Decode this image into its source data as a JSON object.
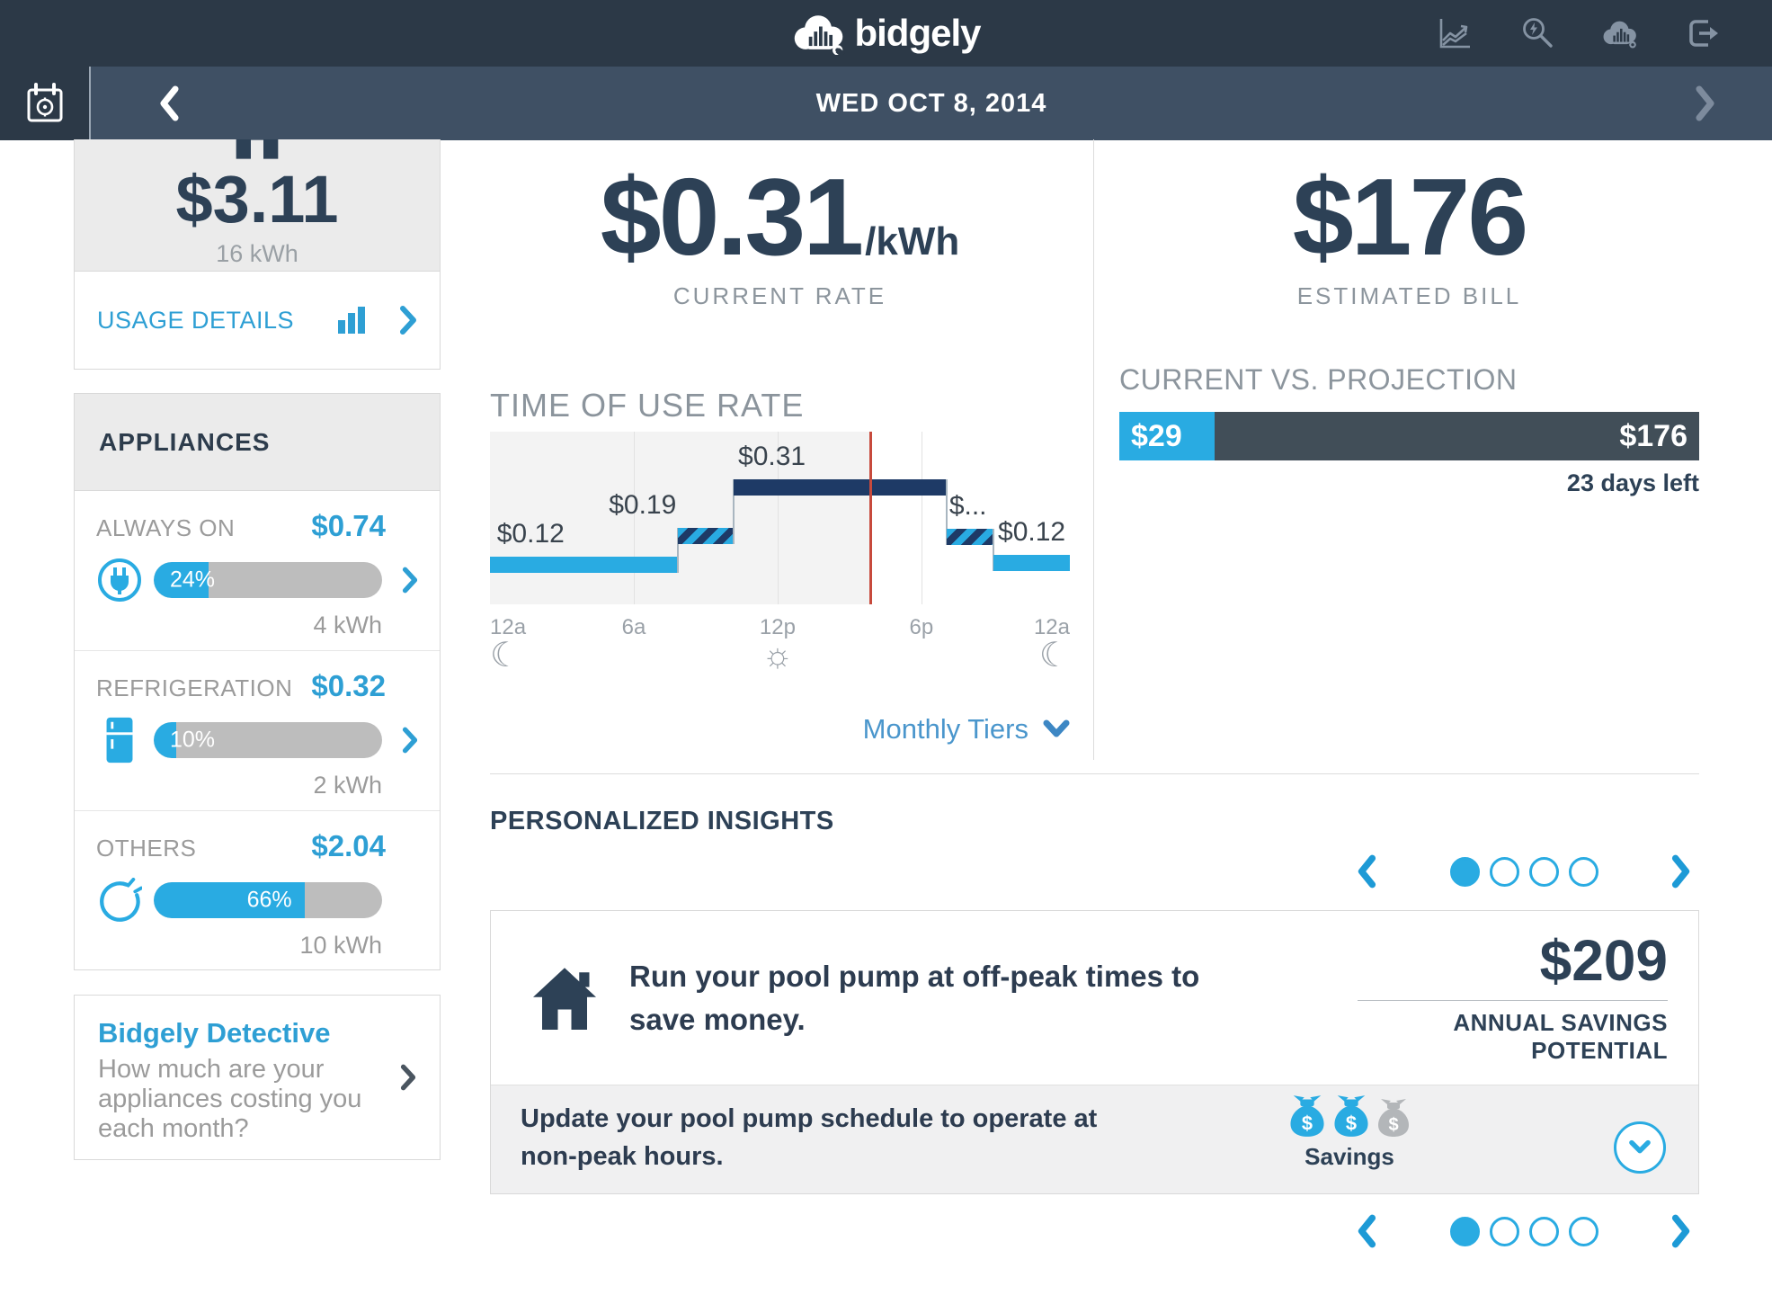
{
  "colors": {
    "accent_blue": "#29abe2",
    "link_blue": "#2e9fd4",
    "navy": "#2d4156",
    "nav_bg": "#2c3947",
    "datebar_bg": "#3f5064",
    "tou_dark_bar": "#1e3a66",
    "projection_dark": "#414e58",
    "now_line_red": "#c74a3c"
  },
  "nav": {
    "logo": "bidgely",
    "icons": [
      "usage-chart-icon",
      "search-icon",
      "bidgely-cloud-icon",
      "logout-icon"
    ]
  },
  "datebar": {
    "date": "WED OCT 8, 2014"
  },
  "sidebar": {
    "summary": {
      "cost": "$3.11",
      "usage": "16 kWh",
      "link_label": "USAGE DETAILS"
    },
    "appliances": {
      "title": "APPLIANCES",
      "items": [
        {
          "label": "ALWAYS ON",
          "cost": "$0.74",
          "percent": 24,
          "percent_label": "24%",
          "kwh": "4 kWh",
          "icon": "always-on-plug-icon",
          "has_chevron": true
        },
        {
          "label": "REFRIGERATION",
          "cost": "$0.32",
          "percent": 10,
          "percent_label": "10%",
          "kwh": "2 kWh",
          "icon": "refrigerator-icon",
          "has_chevron": true
        },
        {
          "label": "OTHERS",
          "cost": "$2.04",
          "percent": 66,
          "percent_label": "66%",
          "kwh": "10 kWh",
          "icon": "others-plug-loop-icon",
          "has_chevron": false
        }
      ]
    },
    "detective": {
      "title": "Bidgely Detective",
      "body": "How much are your appliances costing you each month?"
    }
  },
  "current_rate": {
    "value": "$0.31",
    "unit": "/kWh",
    "label": "CURRENT RATE"
  },
  "tou": {
    "title": "TIME OF USE RATE",
    "link_label": "Monthly Tiers",
    "chart_data": {
      "type": "step",
      "title": "TIME OF USE RATE",
      "x_ticks": [
        {
          "label": "12a",
          "x": 0,
          "icon": "moon-icon",
          "glyph": "☾"
        },
        {
          "label": "6a",
          "x": 0.248
        },
        {
          "label": "12p",
          "x": 0.496,
          "icon": "sun-icon",
          "glyph": "☼"
        },
        {
          "label": "6p",
          "x": 0.744
        },
        {
          "label": "12a",
          "x": 1,
          "icon": "moon-icon",
          "glyph": "☾"
        }
      ],
      "gridlines": [
        0.248,
        0.496,
        0.744
      ],
      "now_x": 0.654,
      "segments": [
        {
          "label": "$0.12",
          "rate": 0.12,
          "x0": 0,
          "x1": 0.324,
          "level": 0.724,
          "style": "solid-light",
          "label_x": 0.012
        },
        {
          "label": "$0.19",
          "rate": 0.19,
          "x0": 0.324,
          "x1": 0.42,
          "level": 0.557,
          "style": "hatched",
          "label_x": 0.205
        },
        {
          "label": "$0.31",
          "rate": 0.31,
          "x0": 0.42,
          "x1": 0.788,
          "level": 0.276,
          "style": "solid-dark",
          "label_x": 0.428
        },
        {
          "label": "$...",
          "rate": null,
          "x0": 0.788,
          "x1": 0.868,
          "level": 0.562,
          "style": "hatched",
          "label_x": 0.792
        },
        {
          "label": "$0.12",
          "rate": 0.12,
          "x0": 0.868,
          "x1": 1,
          "level": 0.713,
          "style": "solid-light",
          "label_x": 0.876
        }
      ]
    }
  },
  "bill": {
    "value": "$176",
    "label": "ESTIMATED BILL",
    "comparison": {
      "title": "CURRENT VS. PROJECTION",
      "current_label": "$29",
      "current_pct": 16.5,
      "projected_label": "$176",
      "days_left": "23 days left"
    }
  },
  "insights": {
    "title": "PERSONALIZED INSIGHTS",
    "carousel": {
      "dots": 4,
      "active": 0
    },
    "card": {
      "headline": "Run your pool pump at off-peak times to save money.",
      "savings_value": "$209",
      "savings_label": "ANNUAL SAVINGS POTENTIAL",
      "detail": "Update your pool pump schedule to operate at non-peak hours.",
      "bags_label": "Savings",
      "bags": [
        {
          "icon": "money-bag-icon",
          "active": true
        },
        {
          "icon": "money-bag-icon",
          "active": true
        },
        {
          "icon": "money-bag-icon",
          "active": false
        }
      ]
    }
  }
}
